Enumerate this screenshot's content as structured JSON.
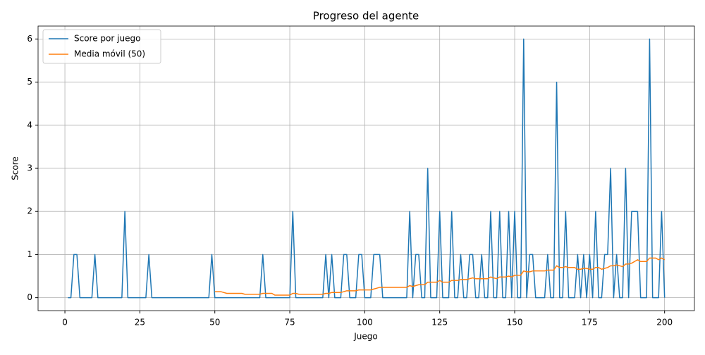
{
  "chart_data": {
    "type": "line",
    "title": "Progreso del agente",
    "xlabel": "Juego",
    "ylabel": "Score",
    "x": [
      1,
      2,
      3,
      4,
      5,
      6,
      7,
      8,
      9,
      10,
      11,
      12,
      13,
      14,
      15,
      16,
      17,
      18,
      19,
      20,
      21,
      22,
      23,
      24,
      25,
      26,
      27,
      28,
      29,
      30,
      31,
      32,
      33,
      34,
      35,
      36,
      37,
      38,
      39,
      40,
      41,
      42,
      43,
      44,
      45,
      46,
      47,
      48,
      49,
      50,
      51,
      52,
      53,
      54,
      55,
      56,
      57,
      58,
      59,
      60,
      61,
      62,
      63,
      64,
      65,
      66,
      67,
      68,
      69,
      70,
      71,
      72,
      73,
      74,
      75,
      76,
      77,
      78,
      79,
      80,
      81,
      82,
      83,
      84,
      85,
      86,
      87,
      88,
      89,
      90,
      91,
      92,
      93,
      94,
      95,
      96,
      97,
      98,
      99,
      100,
      101,
      102,
      103,
      104,
      105,
      106,
      107,
      108,
      109,
      110,
      111,
      112,
      113,
      114,
      115,
      116,
      117,
      118,
      119,
      120,
      121,
      122,
      123,
      124,
      125,
      126,
      127,
      128,
      129,
      130,
      131,
      132,
      133,
      134,
      135,
      136,
      137,
      138,
      139,
      140,
      141,
      142,
      143,
      144,
      145,
      146,
      147,
      148,
      149,
      150,
      151,
      152,
      153,
      154,
      155,
      156,
      157,
      158,
      159,
      160,
      161,
      162,
      163,
      164,
      165,
      166,
      167,
      168,
      169,
      170,
      171,
      172,
      173,
      174,
      175,
      176,
      177,
      178,
      179,
      180,
      181,
      182,
      183,
      184,
      185,
      186,
      187,
      188,
      189,
      190,
      191,
      192,
      193,
      194,
      195,
      196,
      197,
      198,
      199,
      200
    ],
    "series": [
      {
        "name": "Score por juego",
        "color": "#1f77b4",
        "values": [
          0,
          0,
          1,
          1,
          0,
          0,
          0,
          0,
          0,
          1,
          0,
          0,
          0,
          0,
          0,
          0,
          0,
          0,
          0,
          2,
          0,
          0,
          0,
          0,
          0,
          0,
          0,
          1,
          0,
          0,
          0,
          0,
          0,
          0,
          0,
          0,
          0,
          0,
          0,
          0,
          0,
          0,
          0,
          0,
          0,
          0,
          0,
          0,
          1,
          0,
          0,
          0,
          0,
          0,
          0,
          0,
          0,
          0,
          0,
          0,
          0,
          0,
          0,
          0,
          0,
          1,
          0,
          0,
          0,
          0,
          0,
          0,
          0,
          0,
          0,
          2,
          0,
          0,
          0,
          0,
          0,
          0,
          0,
          0,
          0,
          0,
          1,
          0,
          1,
          0,
          0,
          0,
          1,
          1,
          0,
          0,
          0,
          1,
          1,
          0,
          0,
          0,
          1,
          1,
          1,
          0,
          0,
          0,
          0,
          0,
          0,
          0,
          0,
          0,
          2,
          0,
          1,
          1,
          0,
          0,
          3,
          0,
          0,
          0,
          2,
          0,
          0,
          0,
          2,
          0,
          0,
          1,
          0,
          0,
          1,
          1,
          0,
          0,
          1,
          0,
          0,
          2,
          0,
          0,
          2,
          0,
          0,
          2,
          0,
          2,
          0,
          0,
          6,
          0,
          1,
          1,
          0,
          0,
          0,
          0,
          1,
          0,
          0,
          5,
          0,
          0,
          2,
          0,
          0,
          0,
          1,
          0,
          1,
          0,
          1,
          0,
          2,
          0,
          0,
          1,
          1,
          3,
          0,
          1,
          0,
          0,
          3,
          0,
          2,
          2,
          2,
          0,
          0,
          0,
          6,
          0,
          0,
          0,
          2,
          0
        ]
      },
      {
        "name": "Media móvil (50)",
        "color": "#ff7f0e",
        "values": [
          null,
          null,
          null,
          null,
          null,
          null,
          null,
          null,
          null,
          null,
          null,
          null,
          null,
          null,
          null,
          null,
          null,
          null,
          null,
          null,
          null,
          null,
          null,
          null,
          null,
          null,
          null,
          null,
          null,
          null,
          null,
          null,
          null,
          null,
          null,
          null,
          null,
          null,
          null,
          null,
          null,
          null,
          null,
          null,
          null,
          null,
          null,
          null,
          null,
          0.14,
          0.14,
          0.14,
          0.12,
          0.1,
          0.1,
          0.1,
          0.1,
          0.1,
          0.1,
          0.08,
          0.08,
          0.08,
          0.08,
          0.08,
          0.08,
          0.1,
          0.1,
          0.1,
          0.1,
          0.06,
          0.06,
          0.06,
          0.06,
          0.06,
          0.06,
          0.1,
          0.1,
          0.08,
          0.08,
          0.08,
          0.08,
          0.08,
          0.08,
          0.08,
          0.08,
          0.08,
          0.1,
          0.1,
          0.12,
          0.12,
          0.12,
          0.12,
          0.14,
          0.16,
          0.16,
          0.16,
          0.16,
          0.18,
          0.18,
          0.18,
          0.18,
          0.18,
          0.2,
          0.22,
          0.24,
          0.24,
          0.24,
          0.24,
          0.24,
          0.24,
          0.24,
          0.24,
          0.24,
          0.24,
          0.28,
          0.26,
          0.28,
          0.3,
          0.3,
          0.3,
          0.36,
          0.36,
          0.36,
          0.36,
          0.4,
          0.36,
          0.36,
          0.36,
          0.4,
          0.4,
          0.4,
          0.42,
          0.42,
          0.42,
          0.44,
          0.46,
          0.44,
          0.44,
          0.44,
          0.44,
          0.44,
          0.48,
          0.46,
          0.44,
          0.48,
          0.48,
          0.48,
          0.5,
          0.48,
          0.52,
          0.52,
          0.52,
          0.62,
          0.6,
          0.6,
          0.62,
          0.62,
          0.62,
          0.62,
          0.62,
          0.64,
          0.64,
          0.64,
          0.74,
          0.7,
          0.7,
          0.72,
          0.7,
          0.7,
          0.7,
          0.66,
          0.66,
          0.68,
          0.68,
          0.66,
          0.66,
          0.7,
          0.7,
          0.66,
          0.68,
          0.7,
          0.74,
          0.74,
          0.76,
          0.74,
          0.72,
          0.78,
          0.78,
          0.8,
          0.84,
          0.88,
          0.84,
          0.84,
          0.84,
          0.92,
          0.92,
          0.92,
          0.88,
          0.92,
          0.88
        ]
      }
    ],
    "xlim": [
      -8.95,
      209.95
    ],
    "xticks": [
      0,
      25,
      50,
      75,
      100,
      125,
      150,
      175,
      200
    ],
    "ylim": [
      -0.3,
      6.3
    ],
    "yticks": [
      0,
      1,
      2,
      3,
      4,
      5,
      6
    ],
    "grid": true,
    "legend": "upper left"
  }
}
